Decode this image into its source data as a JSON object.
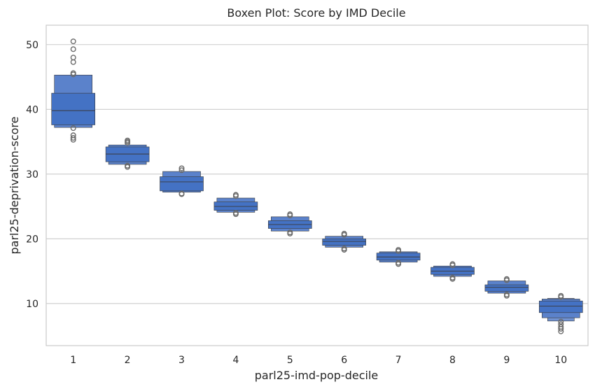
{
  "chart_data": {
    "type": "boxen",
    "title": "Boxen Plot: Score by IMD Decile",
    "xlabel": "parl25-imd-pop-decile",
    "ylabel": "parl25-deprivation-score",
    "categories": [
      "1",
      "2",
      "3",
      "4",
      "5",
      "6",
      "7",
      "8",
      "9",
      "10"
    ],
    "ylim": [
      3.5,
      53
    ],
    "yticks": [
      10,
      20,
      30,
      40,
      50
    ],
    "grid": "horizontal",
    "color": "#4472c4",
    "groups": [
      {
        "x": "1",
        "median": 39.8,
        "levels": [
          [
            37.6,
            42.5
          ],
          [
            37.2,
            45.3
          ]
        ],
        "outliers": [
          50.5,
          49.3,
          48.0,
          47.3,
          45.6,
          45.4,
          37.1,
          36.0,
          35.6,
          35.3
        ]
      },
      {
        "x": "2",
        "median": 33.1,
        "levels": [
          [
            31.9,
            34.2
          ],
          [
            31.5,
            34.5
          ]
        ],
        "outliers": [
          35.2,
          35.0,
          34.8,
          31.3,
          31.1
        ]
      },
      {
        "x": "3",
        "median": 28.8,
        "levels": [
          [
            27.4,
            29.6
          ],
          [
            27.2,
            30.4
          ]
        ],
        "outliers": [
          30.9,
          30.6,
          27.0,
          26.9
        ]
      },
      {
        "x": "4",
        "median": 25.0,
        "levels": [
          [
            24.4,
            25.7
          ],
          [
            24.1,
            26.3
          ]
        ],
        "outliers": [
          26.8,
          26.6,
          24.0,
          23.8
        ]
      },
      {
        "x": "5",
        "median": 22.2,
        "levels": [
          [
            21.6,
            22.8
          ],
          [
            21.2,
            23.4
          ]
        ],
        "outliers": [
          23.8,
          23.6,
          21.0,
          20.8
        ]
      },
      {
        "x": "6",
        "median": 19.6,
        "levels": [
          [
            19.0,
            20.0
          ],
          [
            18.7,
            20.4
          ]
        ],
        "outliers": [
          20.8,
          20.6,
          18.5,
          18.3
        ]
      },
      {
        "x": "7",
        "median": 17.2,
        "levels": [
          [
            16.7,
            17.8
          ],
          [
            16.4,
            18.0
          ]
        ],
        "outliers": [
          18.3,
          18.1,
          16.3,
          16.1
        ]
      },
      {
        "x": "8",
        "median": 15.0,
        "levels": [
          [
            14.5,
            15.6
          ],
          [
            14.2,
            15.8
          ]
        ],
        "outliers": [
          16.1,
          15.9,
          14.0,
          13.8
        ]
      },
      {
        "x": "9",
        "median": 12.5,
        "levels": [
          [
            11.9,
            12.9
          ],
          [
            11.6,
            13.5
          ]
        ],
        "outliers": [
          13.8,
          13.6,
          11.4,
          11.2
        ]
      },
      {
        "x": "10",
        "median": 9.6,
        "levels": [
          [
            8.6,
            10.4
          ],
          [
            7.8,
            10.7
          ],
          [
            7.3,
            10.8
          ]
        ],
        "outliers": [
          11.2,
          11.0,
          7.2,
          6.8,
          6.4,
          6.1,
          5.7
        ]
      }
    ]
  }
}
